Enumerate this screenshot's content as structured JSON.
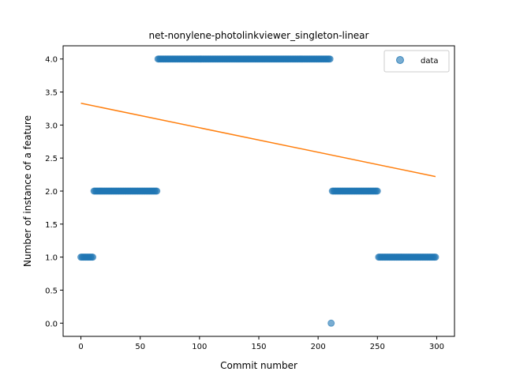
{
  "chart_data": {
    "type": "scatter",
    "title": "net-nonylene-photolinkviewer_singleton-linear",
    "xlabel": "Commit number",
    "ylabel": "Number of instance of a feature",
    "xlim": [
      -15,
      315
    ],
    "ylim": [
      -0.2,
      4.2
    ],
    "xticks": [
      0,
      50,
      100,
      150,
      200,
      250,
      300
    ],
    "yticks": [
      0.0,
      0.5,
      1.0,
      1.5,
      2.0,
      2.5,
      3.0,
      3.5,
      4.0
    ],
    "xtick_labels": [
      "0",
      "50",
      "100",
      "150",
      "200",
      "250",
      "300"
    ],
    "ytick_labels": [
      "0.0",
      "0.5",
      "1.0",
      "1.5",
      "2.0",
      "2.5",
      "3.0",
      "3.5",
      "4.0"
    ],
    "grid": false,
    "legend_position": "top-right",
    "series": [
      {
        "name": "data",
        "kind": "scatter",
        "color": "#1f77b4",
        "segments": [
          {
            "x_start": 0,
            "x_end": 10,
            "y": 1.0
          },
          {
            "x_start": 11,
            "x_end": 64,
            "y": 2.0
          },
          {
            "x_start": 65,
            "x_end": 210,
            "y": 4.0
          },
          {
            "x_start": 211,
            "x_end": 211,
            "y": 0.0
          },
          {
            "x_start": 212,
            "x_end": 250,
            "y": 2.0
          },
          {
            "x_start": 251,
            "x_end": 299,
            "y": 1.0
          }
        ]
      },
      {
        "kind": "line",
        "color": "#ff7f0e",
        "x": [
          0,
          299
        ],
        "y": [
          3.33,
          2.22
        ]
      }
    ]
  }
}
